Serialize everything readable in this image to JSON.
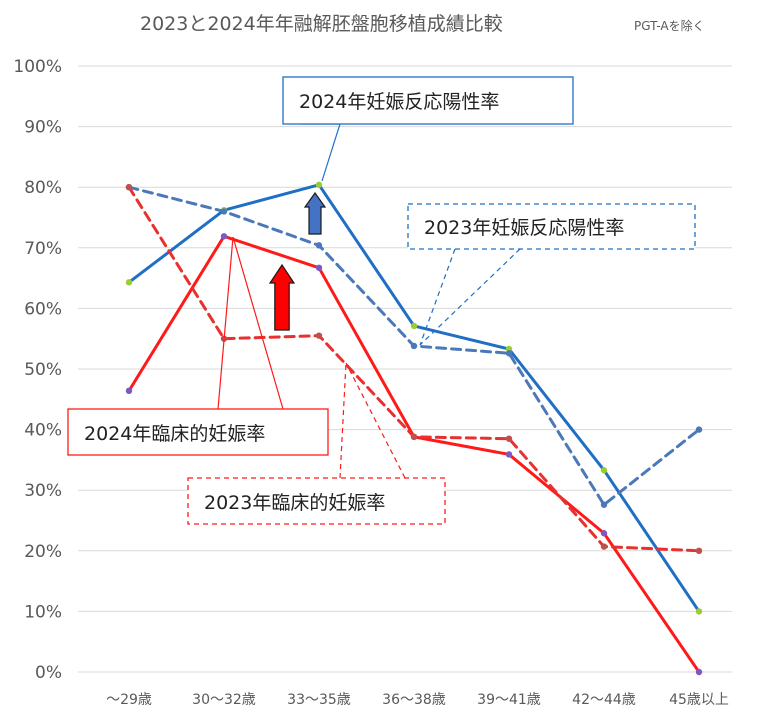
{
  "chart_data": {
    "type": "line",
    "title": "2023と2024年年融解胚盤胞移植成績比較",
    "subtitle": "PGT-Aを除く",
    "categories": [
      "～29歳",
      "30～32歳",
      "33～35歳",
      "36～38歳",
      "39～41歳",
      "42～44歳",
      "45歳以上"
    ],
    "y_tick_labels": [
      "0%",
      "10%",
      "20%",
      "30%",
      "40%",
      "50%",
      "60%",
      "70%",
      "80%",
      "90%",
      "100%"
    ],
    "ylim": [
      0,
      100
    ],
    "grid": true,
    "series": [
      {
        "name": "2024年妊娠反応陽性率",
        "values": [
          64.3,
          76.2,
          80.4,
          57.1,
          53.3,
          33.3,
          10.0
        ],
        "color": "#1f6fc4",
        "dash": false,
        "marker_color": "#9acd32"
      },
      {
        "name": "2023年妊娠反応陽性率",
        "values": [
          80.0,
          76.0,
          70.4,
          53.8,
          52.6,
          27.6,
          40.0
        ],
        "color": "#4a78b8",
        "dash": true,
        "marker_color": "#4a78b8"
      },
      {
        "name": "2024年臨床的妊娠率",
        "values": [
          46.4,
          71.9,
          66.7,
          38.8,
          35.9,
          22.9,
          0.0
        ],
        "color": "#ff1a1a",
        "dash": false,
        "marker_color": "#7e57c2"
      },
      {
        "name": "2023年臨床的妊娠率",
        "values": [
          80.0,
          55.0,
          55.5,
          38.8,
          38.5,
          20.7,
          20.0
        ],
        "color": "#e83030",
        "dash": true,
        "marker_color": "#c0504d"
      }
    ],
    "callouts": [
      {
        "series": 0,
        "text": "2024年妊娠反応陽性率",
        "style": "solid",
        "color": "#1f6fc4"
      },
      {
        "series": 1,
        "text": "2023年妊娠反応陽性率",
        "style": "dashed",
        "color": "#1f6fc4"
      },
      {
        "series": 2,
        "text": "2024年臨床的妊娠率",
        "style": "solid",
        "color": "#ff1a1a"
      },
      {
        "series": 3,
        "text": "2023年臨床的妊娠率",
        "style": "dashed",
        "color": "#ff1a1a"
      }
    ],
    "arrows": [
      {
        "name": "blue-up-arrow",
        "color": "#4472c4"
      },
      {
        "name": "red-up-arrow",
        "color": "#ff0000"
      }
    ]
  }
}
